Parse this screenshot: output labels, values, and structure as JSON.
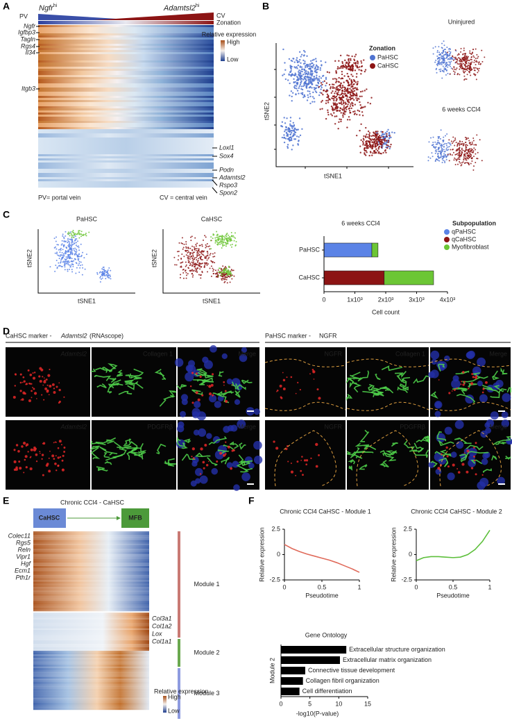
{
  "figure_labels": [
    "A",
    "B",
    "C",
    "D",
    "E",
    "F"
  ],
  "A": {
    "left_gene": "Ngfr",
    "left_sup": "hi",
    "right_gene": "Adamtsl2",
    "right_sup": "hi",
    "pv": "PV",
    "cv": "CV",
    "zonation": "Zonation",
    "legend_title": "Relative expression",
    "legend_high": "High",
    "legend_low": "Low",
    "portal_genes": [
      "Ngfr",
      "Igfbp3",
      "Tagln",
      "Rgs4",
      "Il34",
      "Itgb3"
    ],
    "central_genes": [
      "Loxl1",
      "Sox4",
      "Podn",
      "Adamtsl2",
      "Rspo3",
      "Spon2"
    ],
    "pv_note": "PV= portal vein",
    "cv_note": "CV = central vein"
  },
  "B": {
    "xlabel": "tSNE1",
    "ylabel": "tSNE2",
    "legend_title": "Zonation",
    "legend": [
      {
        "name": "PaHSC",
        "color": "#4f73d1"
      },
      {
        "name": "CaHSC",
        "color": "#8c1414"
      }
    ],
    "uninjured": "Uninjured",
    "ccl4": "6 weeks CCl4"
  },
  "C": {
    "plots": [
      "PaHSC",
      "CaHSC"
    ],
    "xlabel": "tSNE1",
    "ylabel": "tSNE2"
  },
  "D": {
    "left_header": "CaHSC marker -",
    "left_gene": "Adamtsl2",
    "left_tail": "(RNAscope)",
    "right_header": "PaHSC marker -",
    "right_gene": "NGFR",
    "tiles": [
      [
        "Adamtsl2",
        "Collagen 1",
        "Merge",
        "NGFR",
        "Collagen 1",
        "Merge"
      ],
      [
        "Adamtsl2",
        "PDGFRβ",
        "Merge",
        "NGFR",
        "PDGFRβ",
        "Merge"
      ]
    ]
  },
  "E": {
    "title": "Chronic CCl4 - CaHSC",
    "start": "CaHSC",
    "end": "MFB",
    "module1_genes": [
      "Colec11",
      "Rgs5",
      "Reln",
      "Vipr1",
      "Hgf",
      "Ecm1",
      "Pth1r"
    ],
    "module2_genes": [
      "Col3a1",
      "Col1a2",
      "Lox",
      "Col1a1"
    ],
    "modules": [
      "Module 1",
      "Module 2",
      "Module 3"
    ],
    "legend_title": "Relative expression",
    "legend_high": "High",
    "legend_low": "Low"
  },
  "chart_data": [
    {
      "type": "bar",
      "orientation": "horizontal",
      "stacked": true,
      "title": "6 weeks CCl4",
      "categories": [
        "PaHSC",
        "CaHSC"
      ],
      "series": [
        {
          "name": "qPaHSC",
          "color": "#5b83e6",
          "values": [
            1550,
            0
          ]
        },
        {
          "name": "qCaHSC",
          "color": "#8c1414",
          "values": [
            0,
            1950
          ]
        },
        {
          "name": "Myofibroblast",
          "color": "#6cc635",
          "values": [
            200,
            1600
          ]
        }
      ],
      "xlim": [
        0,
        4000
      ],
      "xticks": [
        0,
        {
          "value": 1000,
          "label": "1x10³"
        },
        {
          "value": 2000,
          "label": "2x10³"
        },
        {
          "value": 3000,
          "label": "3x10³"
        },
        {
          "value": 4000,
          "label": "4x10³"
        }
      ],
      "xlabel": "Cell count",
      "legend_title": "Subpopulation"
    },
    {
      "type": "line",
      "title": "Chronic CCl4 CaHSC - Module 1",
      "color": "#e06a5a",
      "x": [
        0,
        0.1,
        0.2,
        0.3,
        0.4,
        0.5,
        0.6,
        0.7,
        0.8,
        0.9,
        1
      ],
      "values": [
        1.0,
        0.6,
        0.3,
        0.05,
        -0.15,
        -0.35,
        -0.55,
        -0.8,
        -1.1,
        -1.4,
        -1.75
      ],
      "xlim": [
        0,
        1
      ],
      "xticks": [
        0,
        0.5,
        1
      ],
      "ylim": [
        -2.5,
        2.5
      ],
      "yticks": [
        -2.5,
        0,
        2.5
      ],
      "xlabel": "Pseudotime",
      "ylabel": "Relative expression"
    },
    {
      "type": "line",
      "title": "Chronic CCl4 CaHSC - Module 2",
      "color": "#5cbf3a",
      "x": [
        0,
        0.1,
        0.2,
        0.3,
        0.4,
        0.5,
        0.6,
        0.7,
        0.8,
        0.9,
        1
      ],
      "values": [
        -0.6,
        -0.3,
        -0.2,
        -0.2,
        -0.25,
        -0.3,
        -0.25,
        0,
        0.5,
        1.3,
        2.4
      ],
      "xlim": [
        0,
        1
      ],
      "xticks": [
        0,
        0.5,
        1
      ],
      "ylim": [
        -2.5,
        2.5
      ],
      "yticks": [
        -2.5,
        0,
        2.5
      ],
      "xlabel": "Pseudotime",
      "ylabel": "Relative expression"
    },
    {
      "type": "hbar",
      "title": "Gene Ontology",
      "color": "#000000",
      "categories": [
        "Extracellular structure organization",
        "Extracellular matrix organization",
        "Connective tissue development",
        "Collagen fibril organization",
        "Cell differentiation"
      ],
      "values": [
        11.3,
        10.2,
        4.2,
        3.8,
        3.2
      ],
      "xlim": [
        0,
        15
      ],
      "xticks": [
        0,
        5,
        10,
        15
      ],
      "xlabel": "-log10(P-value)",
      "ylabel": "Module 2"
    }
  ]
}
